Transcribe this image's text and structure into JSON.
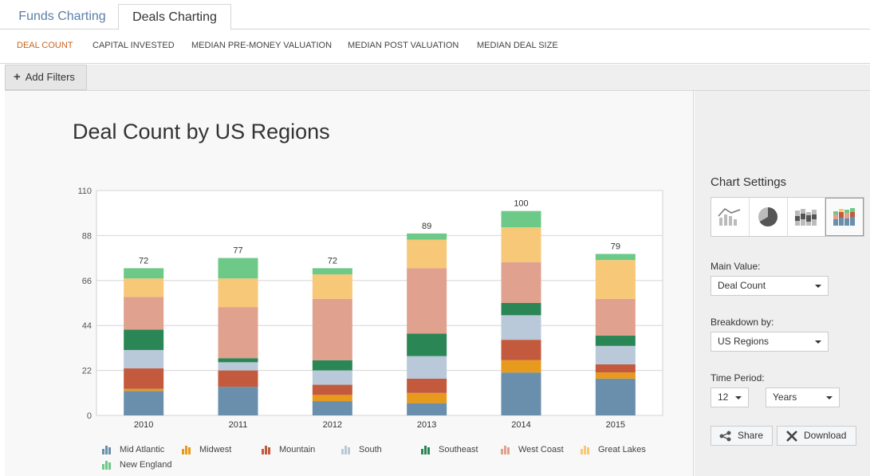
{
  "tabs": [
    {
      "label": "Funds Charting",
      "active": false
    },
    {
      "label": "Deals Charting",
      "active": true
    }
  ],
  "metrics": [
    {
      "label": "DEAL COUNT",
      "active": true
    },
    {
      "label": "CAPITAL INVESTED",
      "active": false
    },
    {
      "label": "MEDIAN PRE-MONEY VALUATION",
      "active": false
    },
    {
      "label": "MEDIAN POST VALUATION",
      "active": false
    },
    {
      "label": "MEDIAN DEAL SIZE",
      "active": false
    }
  ],
  "filters": {
    "add_label": "Add Filters"
  },
  "settings": {
    "title": "Chart Settings",
    "chart_types": [
      "area-chart-icon",
      "pie-chart-icon",
      "heatmap-chart-icon",
      "stacked-bar-chart-icon"
    ],
    "selected_chart_type": "stacked-bar-chart-icon",
    "main_value_label": "Main Value:",
    "main_value": "Deal Count",
    "breakdown_label": "Breakdown by:",
    "breakdown": "US Regions",
    "time_label": "Time Period:",
    "time_count": "12",
    "time_unit": "Years",
    "share_label": "Share",
    "download_label": "Download"
  },
  "chart_data": {
    "type": "bar",
    "stacked": true,
    "title": "Deal Count by US Regions",
    "categories": [
      "2010",
      "2011",
      "2012",
      "2013",
      "2014",
      "2015"
    ],
    "totals": [
      72,
      77,
      72,
      89,
      100,
      79
    ],
    "ylim": [
      0,
      110
    ],
    "yticks": [
      0,
      22,
      44,
      66,
      88,
      110
    ],
    "grid": true,
    "legend_position": "bottom",
    "series": [
      {
        "name": "Mid Atlantic",
        "color": "#6a8fad",
        "values": [
          12,
          14,
          7,
          6,
          21,
          18
        ]
      },
      {
        "name": "Midwest",
        "color": "#e89a1c",
        "values": [
          1,
          0,
          3,
          5,
          6,
          3
        ]
      },
      {
        "name": "Mountain",
        "color": "#c45a3d",
        "values": [
          10,
          8,
          5,
          7,
          10,
          4
        ]
      },
      {
        "name": "South",
        "color": "#b9c9d9",
        "values": [
          9,
          4,
          7,
          11,
          12,
          9
        ]
      },
      {
        "name": "Southeast",
        "color": "#2b8656",
        "values": [
          10,
          2,
          5,
          11,
          6,
          5
        ]
      },
      {
        "name": "West Coast",
        "color": "#e0a18f",
        "values": [
          16,
          25,
          30,
          32,
          20,
          18
        ]
      },
      {
        "name": "Great Lakes",
        "color": "#f6c877",
        "values": [
          9,
          14,
          12,
          14,
          17,
          19
        ]
      },
      {
        "name": "New England",
        "color": "#6cc987",
        "values": [
          5,
          10,
          3,
          3,
          8,
          3
        ]
      }
    ]
  }
}
